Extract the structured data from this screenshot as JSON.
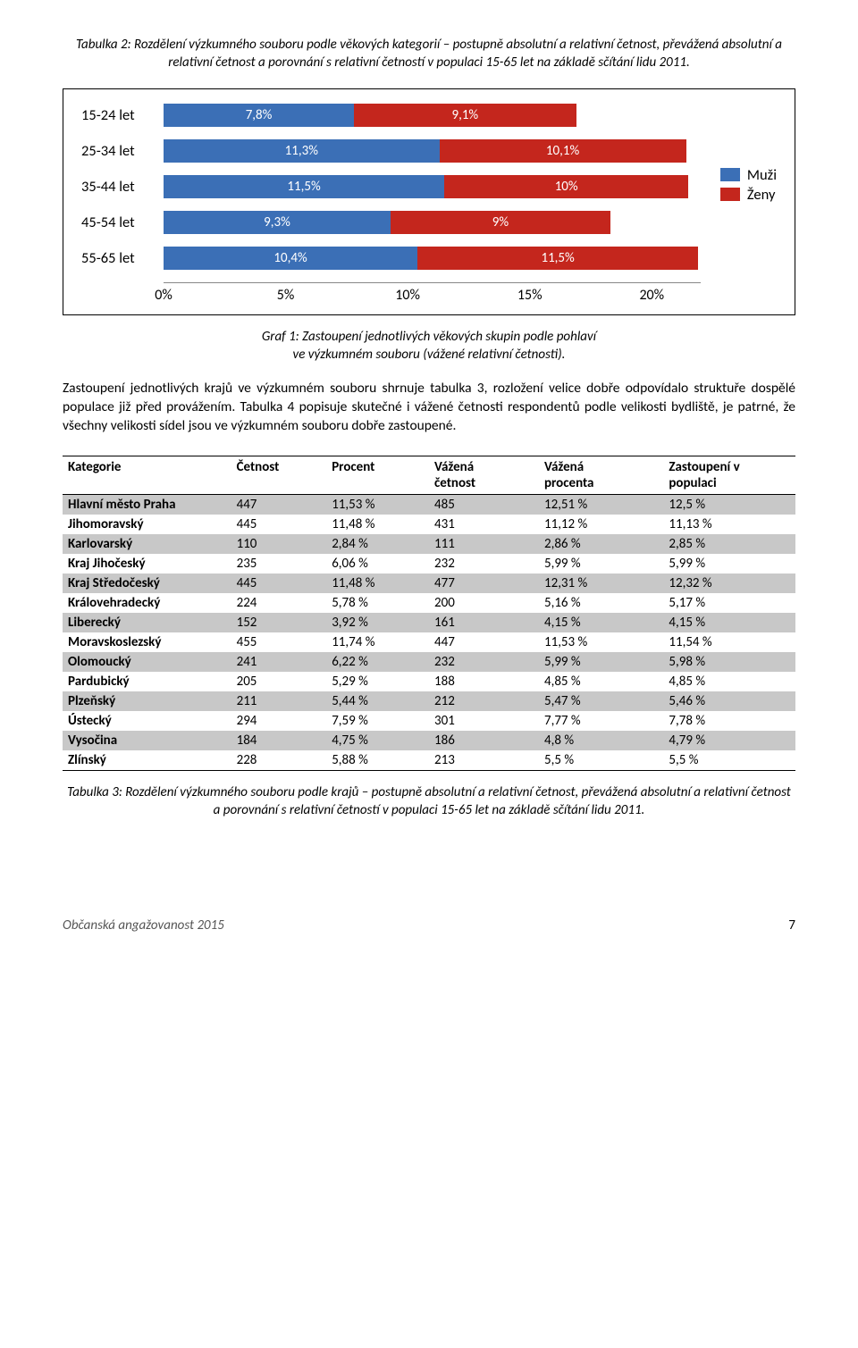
{
  "topCaption": "Tabulka 2: Rozdělení výzkumného souboru podle věkových kategorií – postupně absolutní a relativní četnost, převážená absolutní a relativní četnost a porovnání s relativní četností v populaci 15-65 let na základě sčítání lidu 2011.",
  "chart": {
    "xmax": 22,
    "color_m": "#3b6fb6",
    "color_f": "#c4261d",
    "legend_m": "Muži",
    "legend_f": "Ženy",
    "ticks": [
      {
        "pos": 0,
        "label": "0%"
      },
      {
        "pos": 5,
        "label": "5%"
      },
      {
        "pos": 10,
        "label": "10%"
      },
      {
        "pos": 15,
        "label": "15%"
      },
      {
        "pos": 20,
        "label": "20%"
      }
    ],
    "rows": [
      {
        "label": "15-24 let",
        "m": 7.8,
        "mLabel": "7,8%",
        "f": 9.1,
        "fLabel": "9,1%"
      },
      {
        "label": "25-34 let",
        "m": 11.3,
        "mLabel": "11,3%",
        "f": 10.1,
        "fLabel": "10,1%"
      },
      {
        "label": "35-44 let",
        "m": 11.5,
        "mLabel": "11,5%",
        "f": 10.0,
        "fLabel": "10%"
      },
      {
        "label": "45-54 let",
        "m": 9.3,
        "mLabel": "9,3%",
        "f": 9.0,
        "fLabel": "9%"
      },
      {
        "label": "55-65 let",
        "m": 10.4,
        "mLabel": "10,4%",
        "f": 11.5,
        "fLabel": "11,5%"
      }
    ]
  },
  "chartCaptionL1": "Graf 1: Zastoupení jednotlivých věkových skupin podle pohlaví",
  "chartCaptionL2": "ve výzkumném souboru (vážené relativní četnosti).",
  "para": "Zastoupení jednotlivých krajů ve výzkumném souboru shrnuje tabulka 3, rozložení velice dobře odpovídalo struktuře dospělé populace již před provážením. Tabulka 4 popisuje skutečné i vážené četnosti respondentů podle velikosti bydliště, je patrné, že všechny velikosti sídel jsou ve výzkumném souboru dobře zastoupené.",
  "table": {
    "headers": [
      "Kategorie",
      "Četnost",
      "Procent",
      "Vážená četnost",
      "Vážená procenta",
      "Zastoupení v populaci"
    ],
    "rows": [
      {
        "shaded": true,
        "cells": [
          "Hlavní město Praha",
          "447",
          "11,53 %",
          "485",
          "12,51 %",
          "12,5 %"
        ]
      },
      {
        "shaded": false,
        "cells": [
          "Jihomoravský",
          "445",
          "11,48 %",
          "431",
          "11,12 %",
          "11,13 %"
        ]
      },
      {
        "shaded": true,
        "cells": [
          "Karlovarský",
          "110",
          "2,84 %",
          "111",
          "2,86 %",
          "2,85 %"
        ]
      },
      {
        "shaded": false,
        "cells": [
          "Kraj Jihočeský",
          "235",
          "6,06 %",
          "232",
          "5,99 %",
          "5,99 %"
        ]
      },
      {
        "shaded": true,
        "cells": [
          "Kraj Středočeský",
          "445",
          "11,48 %",
          "477",
          "12,31 %",
          "12,32 %"
        ]
      },
      {
        "shaded": false,
        "cells": [
          "Královehradecký",
          "224",
          "5,78 %",
          "200",
          "5,16 %",
          "5,17 %"
        ]
      },
      {
        "shaded": true,
        "cells": [
          "Liberecký",
          "152",
          "3,92 %",
          "161",
          "4,15 %",
          "4,15 %"
        ]
      },
      {
        "shaded": false,
        "cells": [
          "Moravskoslezský",
          "455",
          "11,74 %",
          "447",
          "11,53 %",
          "11,54 %"
        ]
      },
      {
        "shaded": true,
        "cells": [
          "Olomoucký",
          "241",
          "6,22 %",
          "232",
          "5,99 %",
          "5,98 %"
        ]
      },
      {
        "shaded": false,
        "cells": [
          "Pardubický",
          "205",
          "5,29 %",
          "188",
          "4,85 %",
          "4,85 %"
        ]
      },
      {
        "shaded": true,
        "cells": [
          "Plzeňský",
          "211",
          "5,44 %",
          "212",
          "5,47 %",
          "5,46 %"
        ]
      },
      {
        "shaded": false,
        "cells": [
          "Ústecký",
          "294",
          "7,59 %",
          "301",
          "7,77 %",
          "7,78 %"
        ]
      },
      {
        "shaded": true,
        "cells": [
          "Vysočina",
          "184",
          "4,75 %",
          "186",
          "4,8 %",
          "4,79 %"
        ]
      },
      {
        "shaded": false,
        "cells": [
          "Zlínský",
          "228",
          "5,88 %",
          "213",
          "5,5 %",
          "5,5 %"
        ]
      }
    ]
  },
  "tableCaption": "Tabulka 3: Rozdělení výzkumného souboru podle krajů – postupně absolutní a relativní četnost, převážená absolutní a relativní četnost a porovnání s relativní četností v populaci 15-65 let na základě sčítání lidu 2011.",
  "footer": {
    "left": "Občanská angažovanost 2015",
    "page": "7"
  }
}
